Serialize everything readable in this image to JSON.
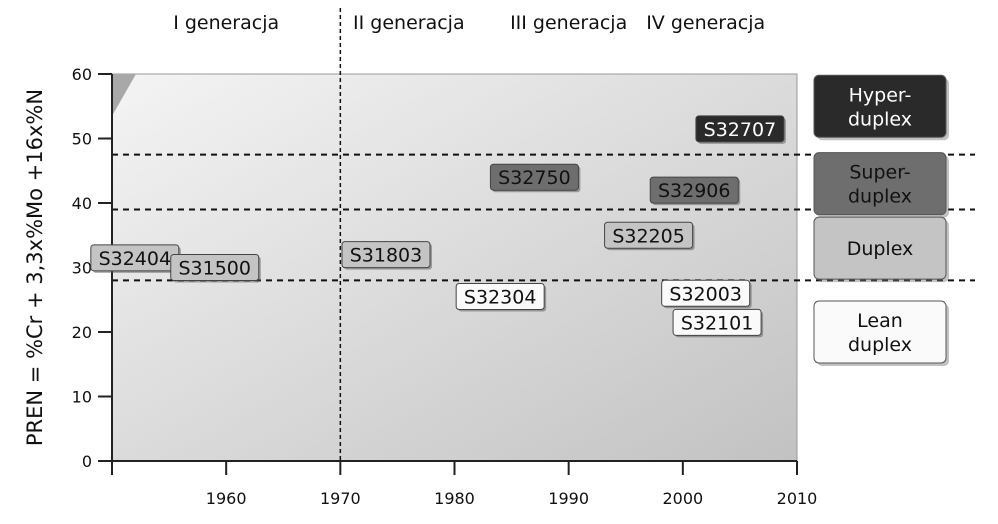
{
  "chart_data": {
    "type": "scatter",
    "title": "",
    "xlabel": "",
    "ylabel": "PREN = %Cr + 3,3x%Mo +16x%N",
    "xlim": [
      1950,
      2010
    ],
    "ylim": [
      0,
      60
    ],
    "x_ticks": [
      1960,
      1970,
      1980,
      1990,
      2000,
      2010
    ],
    "y_ticks": [
      0,
      10,
      20,
      30,
      40,
      50,
      60
    ],
    "grid": false,
    "generations": [
      {
        "label": "I generacja",
        "x_center": 1960
      },
      {
        "label": "II generacja",
        "x_center": 1976
      },
      {
        "label": "III generacja",
        "x_center": 1990
      },
      {
        "label": "IV generacja",
        "x_center": 2002
      }
    ],
    "generation_divider_x": 1970,
    "thresholds": [
      {
        "y": 28,
        "style": "dashed"
      },
      {
        "y": 39,
        "style": "dashed"
      },
      {
        "y": 47.5,
        "style": "dashed"
      }
    ],
    "categories": [
      {
        "label": "Hyper-\nduplex",
        "fill": "#2a2a2a",
        "text_color": "#ffffff",
        "y_center": 55
      },
      {
        "label": "Super-\nduplex",
        "fill": "#6e6e6e",
        "text_color": "#111111",
        "y_center": 43
      },
      {
        "label": "Duplex",
        "fill": "#c4c4c4",
        "text_color": "#111111",
        "y_center": 33
      },
      {
        "label": "Lean\nduplex",
        "fill": "#fafafa",
        "text_color": "#111111",
        "y_center": 20
      }
    ],
    "points": [
      {
        "label": "S32404",
        "x": 1952,
        "y": 31.5,
        "fill": "#c4c4c4",
        "text_color": "#111111"
      },
      {
        "label": "S31500",
        "x": 1959,
        "y": 30,
        "fill": "#c4c4c4",
        "text_color": "#111111"
      },
      {
        "label": "S31803",
        "x": 1974,
        "y": 32,
        "fill": "#c4c4c4",
        "text_color": "#111111"
      },
      {
        "label": "S32304",
        "x": 1984,
        "y": 25.5,
        "fill": "#fafafa",
        "text_color": "#111111"
      },
      {
        "label": "S32750",
        "x": 1987,
        "y": 44,
        "fill": "#6e6e6e",
        "text_color": "#111111"
      },
      {
        "label": "S32205",
        "x": 1997,
        "y": 35,
        "fill": "#c4c4c4",
        "text_color": "#111111"
      },
      {
        "label": "S32906",
        "x": 2001,
        "y": 42,
        "fill": "#6e6e6e",
        "text_color": "#111111"
      },
      {
        "label": "S32707",
        "x": 2005,
        "y": 51.5,
        "fill": "#2a2a2a",
        "text_color": "#ffffff"
      },
      {
        "label": "S32003",
        "x": 2002,
        "y": 26,
        "fill": "#fafafa",
        "text_color": "#111111"
      },
      {
        "label": "S32101",
        "x": 2003,
        "y": 21.5,
        "fill": "#fafafa",
        "text_color": "#111111"
      }
    ],
    "colors": {
      "plot_gradient_light": "#f4f4f4",
      "plot_gradient_dark": "#c2c2c2",
      "axis": "#222222"
    }
  }
}
